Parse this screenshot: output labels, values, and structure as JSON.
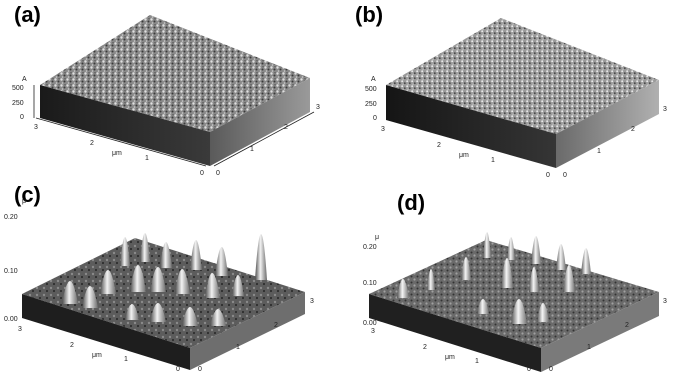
{
  "figure": {
    "panels": [
      {
        "id": "a",
        "label": "(a)",
        "z_unit": "A",
        "z_ticks": [
          "500",
          "250",
          "0"
        ],
        "x_label": "μm",
        "x_ticks": [
          "3",
          "2",
          "1",
          "0"
        ],
        "y_ticks": [
          "0",
          "1",
          "2",
          "3"
        ]
      },
      {
        "id": "b",
        "label": "(b)",
        "z_unit": "A",
        "z_ticks": [
          "500",
          "250",
          "0"
        ],
        "x_label": "μm",
        "x_ticks": [
          "3",
          "2",
          "1",
          "0"
        ],
        "y_ticks": [
          "0",
          "1",
          "2",
          "3"
        ]
      },
      {
        "id": "c",
        "label": "(c)",
        "z_unit": "μ",
        "z_ticks": [
          "0.20",
          "0.10",
          "0.00"
        ],
        "x_label": "μm",
        "x_ticks": [
          "3",
          "2",
          "1",
          "0"
        ],
        "y_ticks": [
          "0",
          "1",
          "2",
          "3"
        ]
      },
      {
        "id": "d",
        "label": "(d)",
        "z_unit": "μ",
        "z_ticks": [
          "0.20",
          "0.10",
          "0.00"
        ],
        "x_label": "μm",
        "x_ticks": [
          "3",
          "2",
          "1",
          "0"
        ],
        "y_ticks": [
          "0",
          "1",
          "2",
          "3"
        ]
      }
    ]
  }
}
